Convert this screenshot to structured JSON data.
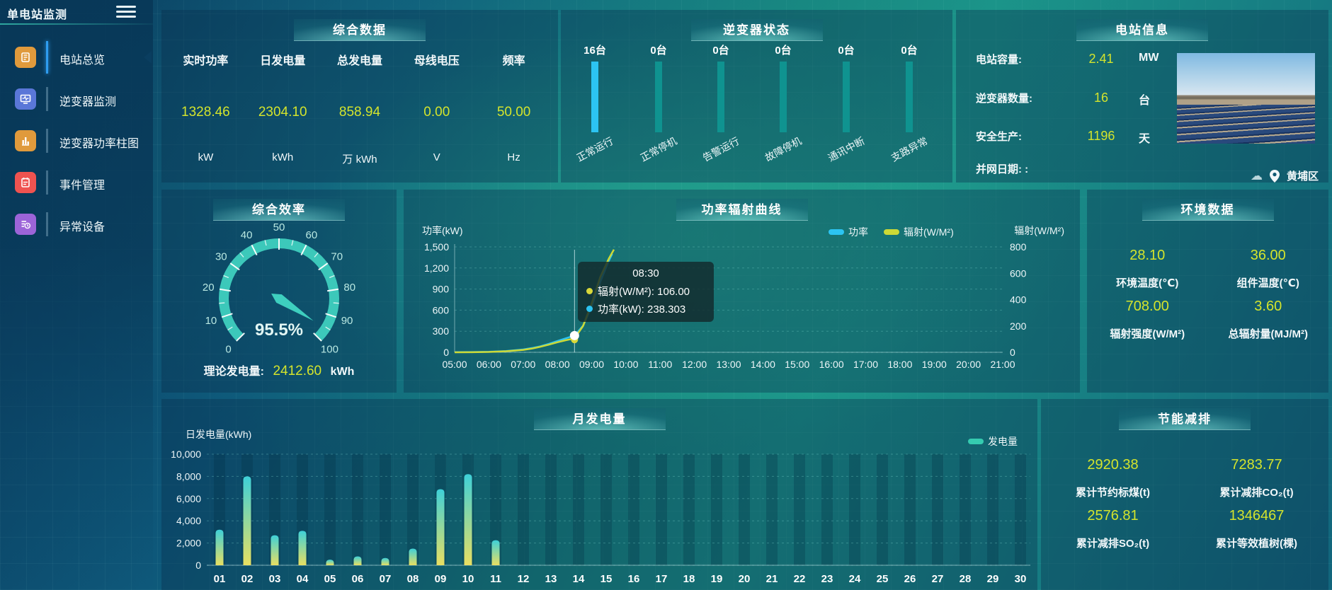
{
  "app": {
    "title": "单电站监测"
  },
  "sidebar": {
    "items": [
      {
        "label": "电站总览",
        "icon": "overview-icon",
        "color": "#e09a3c",
        "active": true
      },
      {
        "label": "逆变器监测",
        "icon": "inverter-monitor-icon",
        "color": "#5a77d8",
        "active": false
      },
      {
        "label": "逆变器功率柱图",
        "icon": "inverter-power-bars-icon",
        "color": "#e09a3c",
        "active": false
      },
      {
        "label": "事件管理",
        "icon": "event-management-icon",
        "color": "#ef5350",
        "active": false
      },
      {
        "label": "异常设备",
        "icon": "abnormal-device-icon",
        "color": "#9c64d8",
        "active": false
      }
    ]
  },
  "panels": {
    "summary": {
      "title": "综合数据",
      "stats": [
        {
          "label": "实时功率",
          "value": "1328.46",
          "unit": "kW"
        },
        {
          "label": "日发电量",
          "value": "2304.10",
          "unit": "kWh"
        },
        {
          "label": "总发电量",
          "value": "858.94",
          "unit": "万 kWh"
        },
        {
          "label": "母线电压",
          "value": "0.00",
          "unit": "V"
        },
        {
          "label": "频率",
          "value": "50.00",
          "unit": "Hz"
        }
      ]
    },
    "inverter_status": {
      "title": "逆变器状态",
      "bars": [
        {
          "count": "16台",
          "label": "正常运行",
          "highlight": true
        },
        {
          "count": "0台",
          "label": "正常停机",
          "highlight": false
        },
        {
          "count": "0台",
          "label": "告警运行",
          "highlight": false
        },
        {
          "count": "0台",
          "label": "故障停机",
          "highlight": false
        },
        {
          "count": "0台",
          "label": "通讯中断",
          "highlight": false
        },
        {
          "count": "0台",
          "label": "支路异常",
          "highlight": false
        }
      ]
    },
    "station_info": {
      "title": "电站信息",
      "rows": [
        {
          "label": "电站容量:",
          "value": "2.41",
          "unit": "MW"
        },
        {
          "label": "逆变器数量:",
          "value": "16",
          "unit": "台"
        },
        {
          "label": "安全生产:",
          "value": "1196",
          "unit": "天"
        },
        {
          "label": "并网日期: :",
          "value": "",
          "unit": ""
        }
      ],
      "location": "黄埔区"
    },
    "efficiency": {
      "title": "综合效率",
      "value_display": "95.5%",
      "theory_label": "理论发电量:",
      "theory_value": "2412.60",
      "theory_unit": "kWh"
    },
    "power_radiation": {
      "title": "功率辐射曲线"
    },
    "environment": {
      "title": "环境数据",
      "cells": [
        {
          "value": "28.10",
          "label": "环境温度(℃)"
        },
        {
          "value": "36.00",
          "label": "组件温度(℃)"
        },
        {
          "value": "708.00",
          "label": "辐射强度(W/M²)"
        },
        {
          "value": "3.60",
          "label": "总辐射量(MJ/M²)"
        }
      ]
    },
    "monthly": {
      "title": "月发电量"
    },
    "saving": {
      "title": "节能减排",
      "cells": [
        {
          "value": "2920.38",
          "label": "累计节约标煤(t)"
        },
        {
          "value": "7283.77",
          "label": "累计减排CO₂(t)"
        },
        {
          "value": "2576.81",
          "label": "累计减排SO₂(t)"
        },
        {
          "value": "1346467",
          "label": "累计等效植树(棵)"
        }
      ]
    }
  },
  "tooltip": {
    "time": "08:30",
    "rows": [
      {
        "color": "#d8d83a",
        "text": "辐射(W/M²): 106.00"
      },
      {
        "color": "#2cc4f2",
        "text": "功率(kW): 238.303"
      }
    ]
  },
  "chart_data": [
    {
      "id": "power_radiation",
      "type": "line",
      "title": "功率辐射曲线",
      "x_tick_labels": [
        "05:00",
        "06:00",
        "07:00",
        "08:00",
        "09:00",
        "10:00",
        "11:00",
        "12:00",
        "13:00",
        "14:00",
        "15:00",
        "16:00",
        "17:00",
        "18:00",
        "19:00",
        "20:00",
        "21:00"
      ],
      "x_range": [
        5,
        21
      ],
      "left_axis": {
        "label": "功率(kW)",
        "ticks": [
          "1,500",
          "1,200",
          "900",
          "600",
          "300",
          "0"
        ],
        "max": 1500
      },
      "right_axis": {
        "label": "辐射(W/M²)",
        "ticks": [
          "800",
          "600",
          "400",
          "200",
          "0"
        ],
        "max": 800
      },
      "legend_position": "top",
      "grid": true,
      "series": [
        {
          "name": "功率",
          "color": "#2cc4f2",
          "axis": "left",
          "x": [
            5,
            5.5,
            6,
            6.5,
            7,
            7.25,
            7.5,
            7.75,
            8,
            8.25,
            8.5,
            8.75,
            9,
            9.25,
            9.5,
            9.6
          ],
          "values": [
            2,
            4,
            8,
            18,
            40,
            60,
            85,
            120,
            160,
            200,
            238.303,
            380,
            650,
            1000,
            1300,
            1400
          ]
        },
        {
          "name": "辐射(W/M²)",
          "color": "#ccd936",
          "axis": "right",
          "x": [
            5,
            5.5,
            6,
            6.5,
            7,
            7.25,
            7.5,
            7.75,
            8,
            8.25,
            8.5,
            8.75,
            9,
            9.25,
            9.5,
            9.65
          ],
          "values": [
            0,
            1,
            3,
            8,
            18,
            28,
            42,
            58,
            76,
            92,
            106,
            200,
            370,
            570,
            710,
            780
          ]
        }
      ],
      "hover": {
        "x": 8.5,
        "power": 238.303,
        "radiation": 106.0
      }
    },
    {
      "id": "monthly_energy",
      "type": "bar",
      "title": "月发电量",
      "ylabel": "日发电量(kWh)",
      "legend": "发电量",
      "categories": [
        "01",
        "02",
        "03",
        "04",
        "05",
        "06",
        "07",
        "08",
        "09",
        "10",
        "11",
        "12",
        "13",
        "14",
        "15",
        "16",
        "17",
        "18",
        "19",
        "20",
        "21",
        "22",
        "23",
        "24",
        "25",
        "26",
        "27",
        "28",
        "29",
        "30"
      ],
      "values": [
        3200,
        8000,
        2700,
        3100,
        500,
        800,
        650,
        1500,
        6850,
        8200,
        2250,
        0,
        0,
        0,
        0,
        0,
        0,
        0,
        0,
        0,
        0,
        0,
        0,
        0,
        0,
        0,
        0,
        0,
        0,
        0
      ],
      "y_tick_labels": [
        "10,000",
        "8,000",
        "6,000",
        "4,000",
        "2,000",
        "0"
      ],
      "ylim": [
        0,
        10000
      ],
      "grid": true
    },
    {
      "id": "efficiency_gauge",
      "type": "gauge",
      "value": 95.5,
      "display": "95.5%",
      "min": 0,
      "max": 100,
      "tick_labels": [
        0,
        10,
        20,
        30,
        40,
        50,
        60,
        70,
        80,
        90,
        100
      ]
    },
    {
      "id": "inverter_status_bars",
      "type": "bar",
      "categories": [
        "正常运行",
        "正常停机",
        "告警运行",
        "故障停机",
        "通讯中断",
        "支路异常"
      ],
      "values": [
        16,
        0,
        0,
        0,
        0,
        0
      ],
      "unit": "台"
    }
  ]
}
